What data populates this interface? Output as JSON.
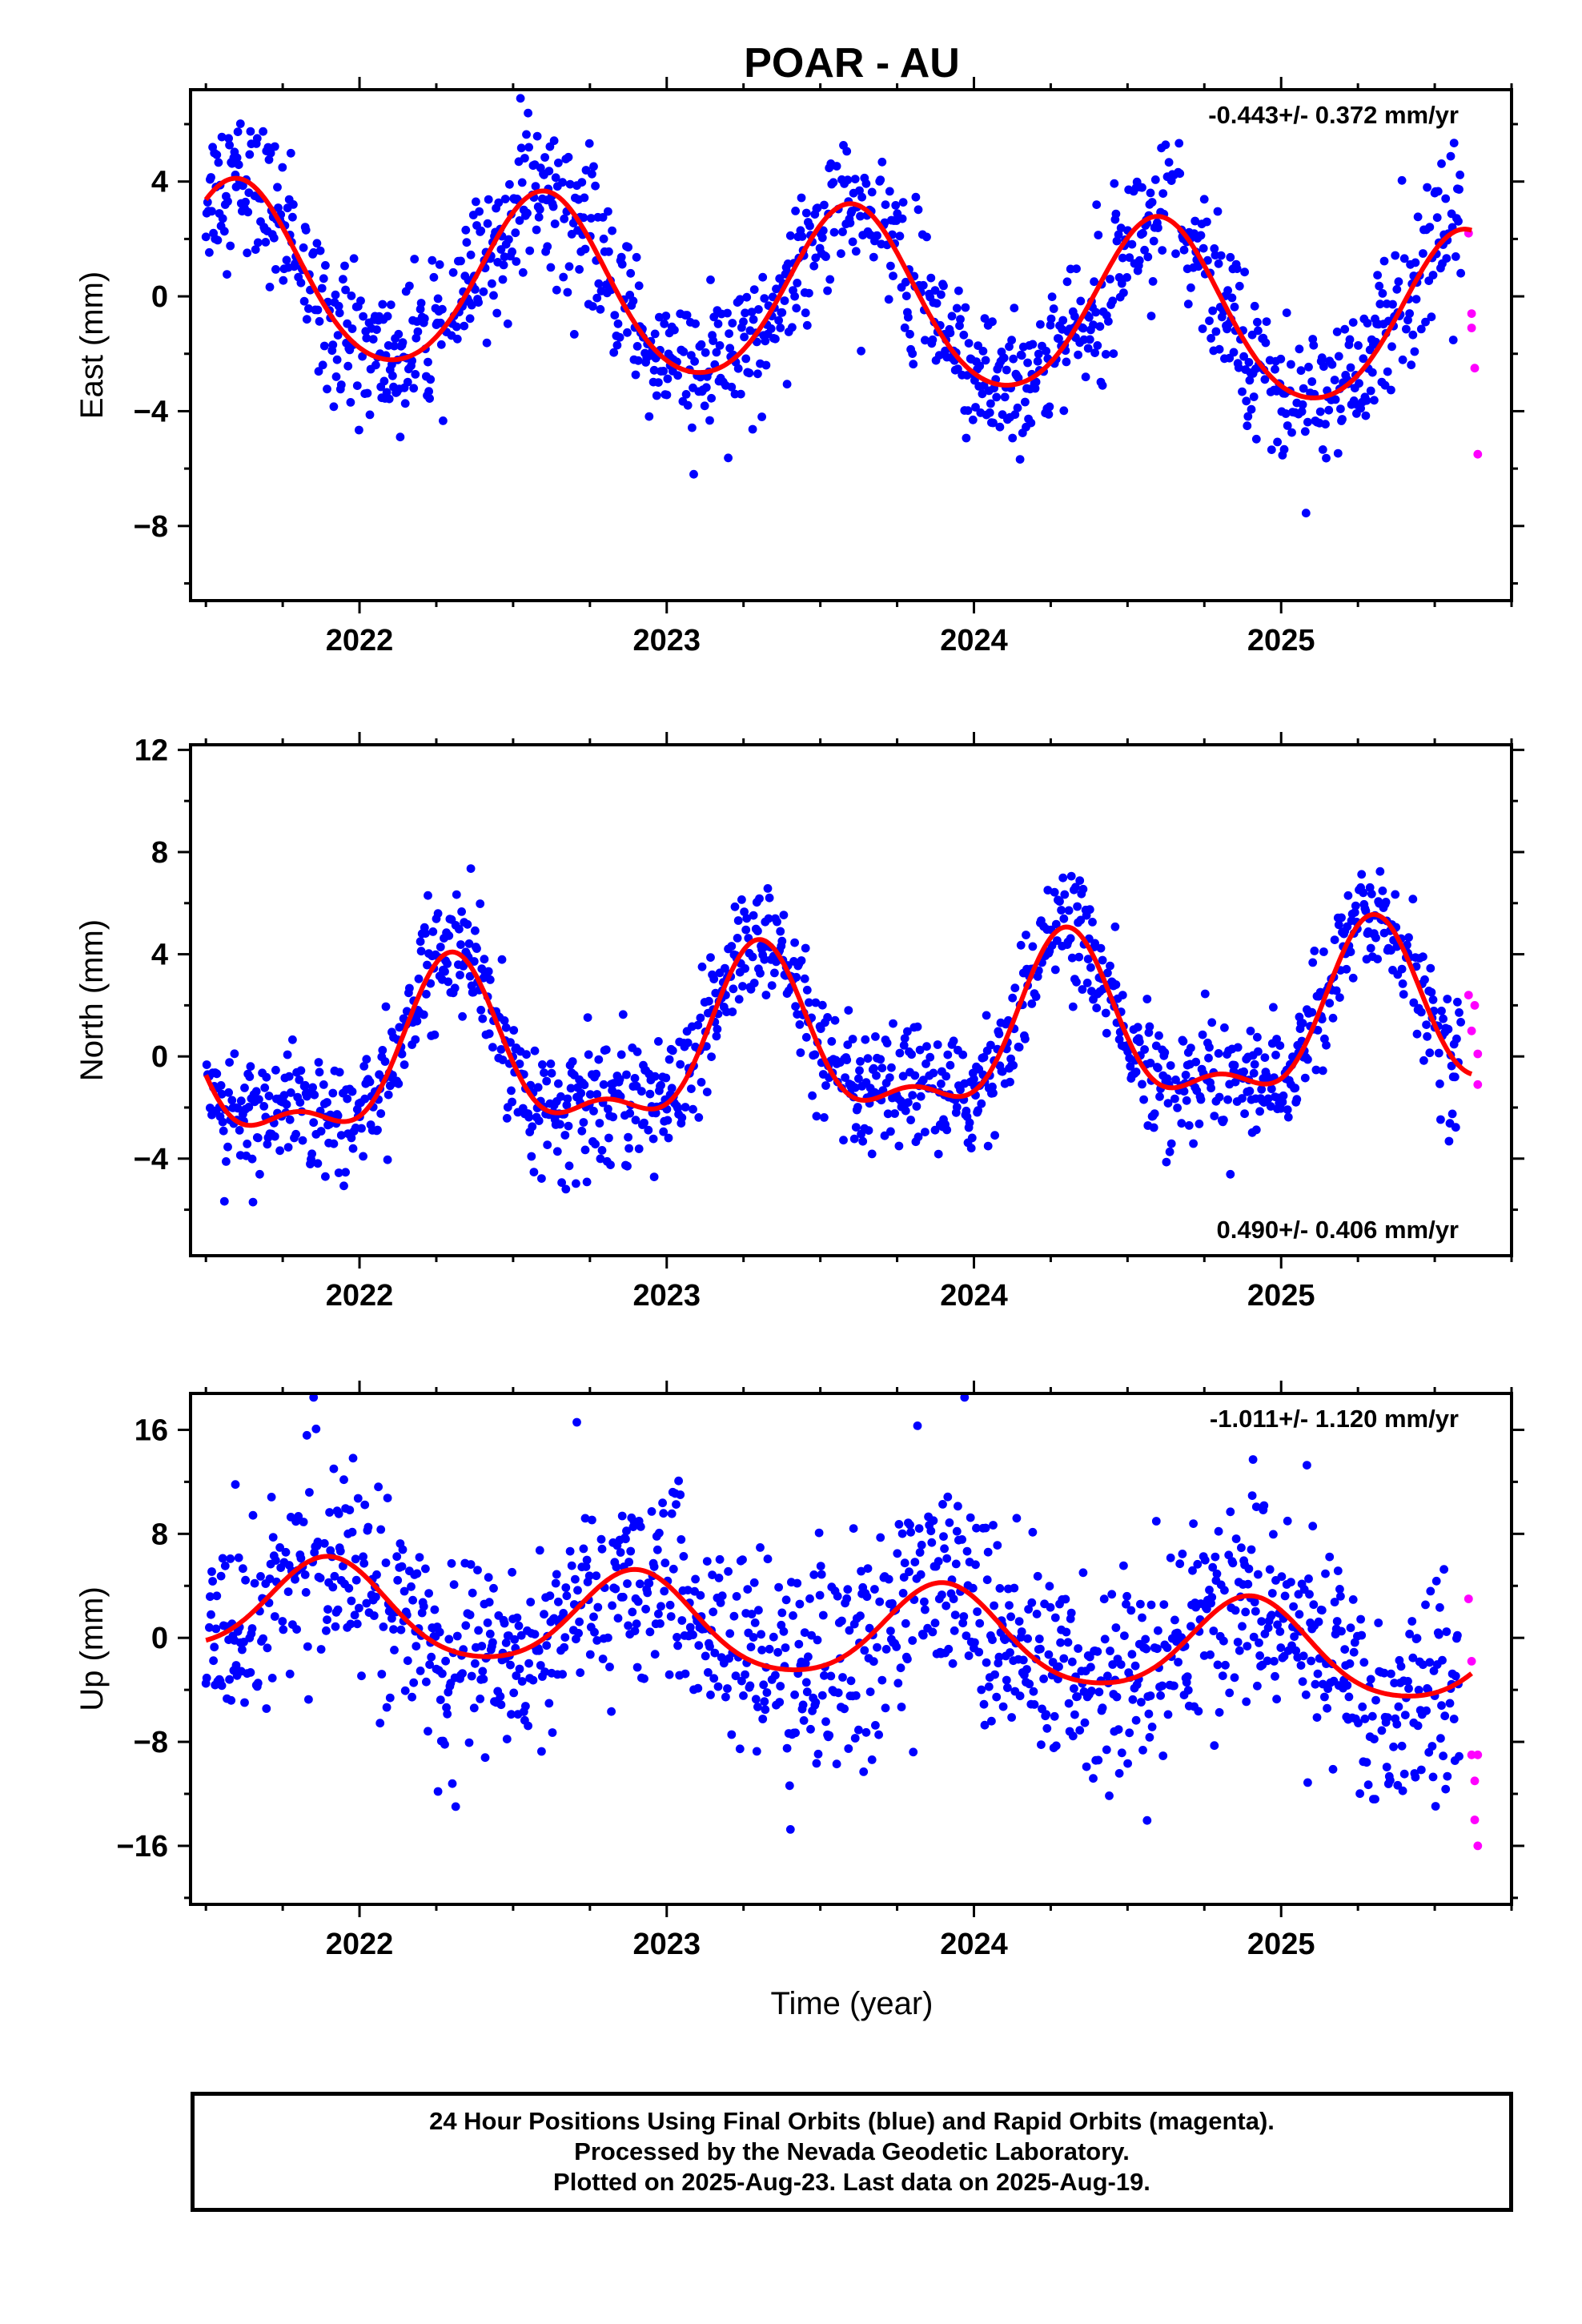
{
  "title": "POAR - AU",
  "xlabel": "Time (year)",
  "footer": {
    "line1": "24 Hour Positions Using Final Orbits (blue) and Rapid Orbits (magenta).",
    "line2": "Processed by the Nevada Geodetic Laboratory.",
    "line3": "Plotted on 2025-Aug-23. Last data on 2025-Aug-19."
  },
  "colors": {
    "final": "#0000ff",
    "rapid": "#ff00ff",
    "fit": "#ff0000",
    "frame": "#000000"
  },
  "chart_data": [
    {
      "type": "scatter",
      "ylabel": "East (mm)",
      "rate_text": "-0.443+/- 0.372 mm/yr",
      "rate_position": "top-right",
      "xlim": [
        2021.45,
        2025.75
      ],
      "ylim": [
        -10.6,
        7.2
      ],
      "yticks": [
        -8,
        -4,
        0,
        4
      ],
      "ytick_labels": [
        "−8",
        "−4",
        "0",
        "4"
      ],
      "xticks": [
        2022,
        2023,
        2024,
        2025
      ],
      "xtick_labels": [
        "2022",
        "2023",
        "2024",
        "2025"
      ],
      "fit": {
        "mean": -0.1,
        "trend": -0.443,
        "t0": 2023.55,
        "amp": 3.05,
        "phase": 2021.6,
        "noise": 1.25,
        "amp2": 0.3
      },
      "rapid_points": [
        [
          2025.61,
          2.2
        ],
        [
          2025.62,
          -0.6
        ],
        [
          2025.62,
          -1.1
        ],
        [
          2025.63,
          -2.5
        ],
        [
          2025.64,
          -5.5
        ]
      ],
      "series": [
        {
          "name": "Final Orbits",
          "color": "#0000ff"
        },
        {
          "name": "Rapid Orbits",
          "color": "#ff00ff"
        }
      ]
    },
    {
      "type": "scatter",
      "ylabel": "North (mm)",
      "rate_text": "0.490+/- 0.406 mm/yr",
      "rate_position": "bottom-right",
      "xlim": [
        2021.45,
        2025.75
      ],
      "ylim": [
        -7.8,
        12.2
      ],
      "yticks": [
        -4,
        0,
        4,
        8,
        12
      ],
      "ytick_labels": [
        "−4",
        "0",
        "4",
        "8",
        "12"
      ],
      "xticks": [
        2022,
        2023,
        2024,
        2025
      ],
      "xtick_labels": [
        "2022",
        "2023",
        "2024",
        "2025"
      ],
      "fit": {
        "mean": 0.4,
        "trend": 0.49,
        "t0": 2023.55,
        "amp": 3.0,
        "phase": 2021.3,
        "noise": 1.15,
        "amp2": 1.3
      },
      "rapid_points": [
        [
          2025.61,
          2.4
        ],
        [
          2025.62,
          1.0
        ],
        [
          2025.63,
          2.0
        ],
        [
          2025.64,
          0.1
        ],
        [
          2025.64,
          -1.1
        ]
      ],
      "series": [
        {
          "name": "Final Orbits",
          "color": "#0000ff"
        },
        {
          "name": "Rapid Orbits",
          "color": "#ff00ff"
        }
      ]
    },
    {
      "type": "scatter",
      "ylabel": "Up (mm)",
      "rate_text": "-1.011+/- 1.120 mm/yr",
      "rate_position": "top-right",
      "xlim": [
        2021.45,
        2025.75
      ],
      "ylim": [
        -20.5,
        18.8
      ],
      "yticks": [
        -16,
        -8,
        0,
        8,
        16
      ],
      "ytick_labels": [
        "−16",
        "−8",
        "0",
        "8",
        "16"
      ],
      "xticks": [
        2022,
        2023,
        2024,
        2025
      ],
      "xtick_labels": [
        "2022",
        "2023",
        "2024",
        "2025"
      ],
      "fit": {
        "mean": 0.5,
        "trend": -1.011,
        "t0": 2023.55,
        "amp": 3.6,
        "phase": 2021.9,
        "noise": 4.0,
        "amp2": 0.5
      },
      "rapid_points": [
        [
          2025.61,
          3.0
        ],
        [
          2025.62,
          -1.8
        ],
        [
          2025.62,
          -9.0
        ],
        [
          2025.63,
          -11.0
        ],
        [
          2025.64,
          -9.0
        ],
        [
          2025.63,
          -14.0
        ],
        [
          2025.64,
          -16.0
        ]
      ],
      "series": [
        {
          "name": "Final Orbits",
          "color": "#0000ff"
        },
        {
          "name": "Rapid Orbits",
          "color": "#ff00ff"
        }
      ]
    }
  ]
}
